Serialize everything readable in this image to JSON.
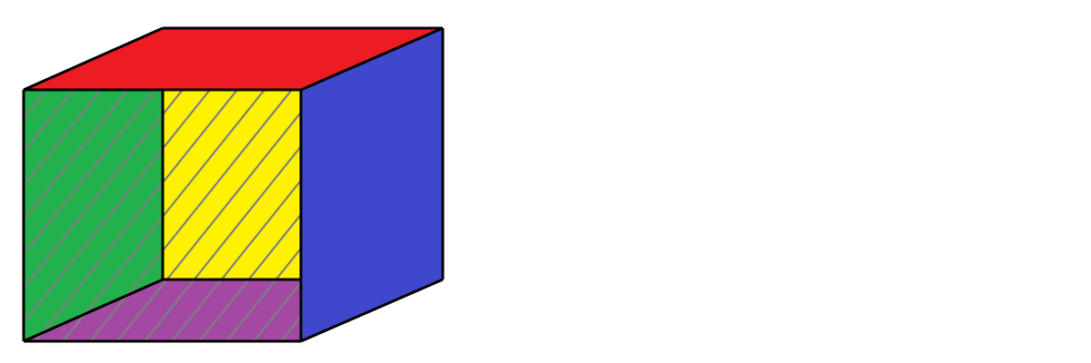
{
  "diagram": {
    "type": "open-box-3d",
    "faces": [
      {
        "name": "top",
        "color": "#ed1c24",
        "hatched": false
      },
      {
        "name": "left",
        "color": "#22b14c",
        "hatched": true
      },
      {
        "name": "back",
        "color": "#fff200",
        "hatched": true
      },
      {
        "name": "bottom",
        "color": "#a349a4",
        "hatched": true
      },
      {
        "name": "right",
        "color": "#3f48cc",
        "hatched": false
      }
    ],
    "edge_color": "#000000",
    "hatch_color": "#7f7f7f",
    "background": "#ffffff"
  }
}
